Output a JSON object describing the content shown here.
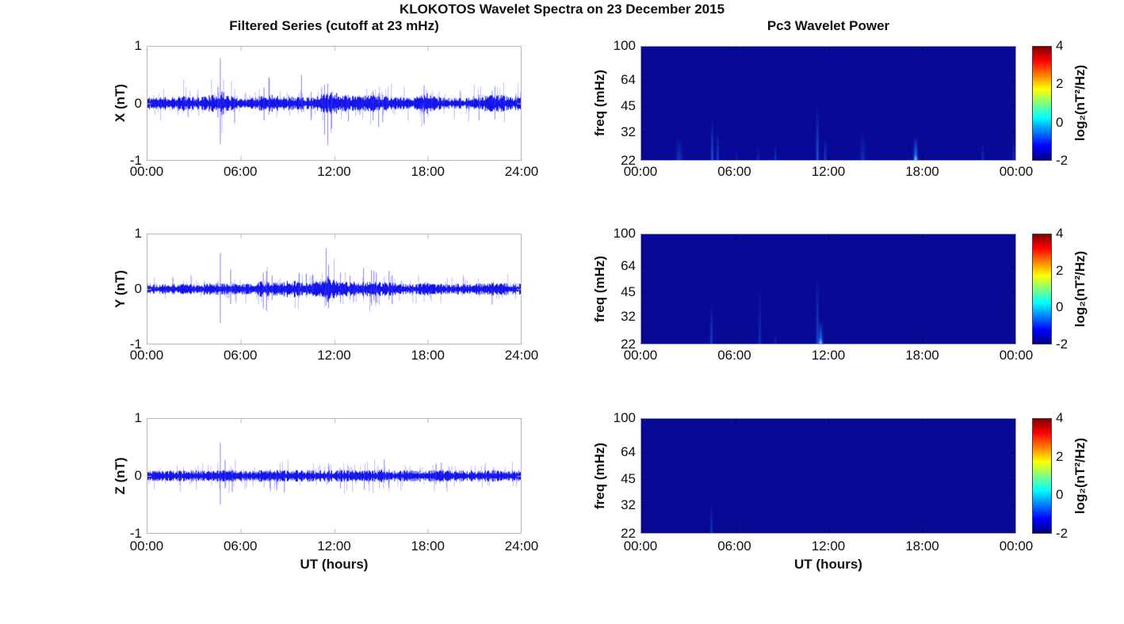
{
  "figure": {
    "title": "KLOKOTOS Wavelet Spectra on 23 December 2015",
    "left_column_title": "Filtered Series (cutoff at 23 mHz)",
    "right_column_title": "Pc3 Wavelet Power",
    "xlabel": "UT (hours)",
    "colorbar": {
      "label": "log₂(nT²/Hz)",
      "ticks": [
        "4",
        "2",
        "0",
        "-2"
      ],
      "range_log2": [
        -2,
        4
      ]
    },
    "colors": {
      "background": "#ffffff",
      "axis_box": "#b8b8b8",
      "series_line": "#0000ee",
      "heatmap_background": "#080a96",
      "text": "#111111"
    },
    "colormap": {
      "name": "jet",
      "stops": [
        "#000080",
        "#0000ff",
        "#00ffff",
        "#ffff00",
        "#ff0000",
        "#800000"
      ],
      "positions": [
        0,
        0.125,
        0.375,
        0.625,
        0.875,
        1
      ]
    }
  },
  "chart_data": [
    {
      "type": "line",
      "id": "filtered-series-x",
      "ylabel": "X (nT)",
      "x_ticks": [
        "00:00",
        "06:00",
        "12:00",
        "18:00",
        "24:00"
      ],
      "y_ticks": [
        1,
        0,
        -1
      ],
      "ylim": [
        -1,
        1
      ],
      "xlim_hours": [
        0,
        24
      ],
      "grid": false,
      "base_noise_nT": 0.065,
      "seed": 11,
      "envelope": [
        [
          0,
          1.1
        ],
        [
          1.5,
          1.2
        ],
        [
          2.5,
          1.4
        ],
        [
          3.2,
          1.1
        ],
        [
          4.3,
          1.6
        ],
        [
          4.8,
          2.1
        ],
        [
          5.3,
          1.4
        ],
        [
          6,
          1.0
        ],
        [
          7,
          1.2
        ],
        [
          7.8,
          1.7
        ],
        [
          8.6,
          1.5
        ],
        [
          9.3,
          1.2
        ],
        [
          10,
          1.1
        ],
        [
          11,
          1.3
        ],
        [
          11.5,
          2.3
        ],
        [
          12.1,
          1.9
        ],
        [
          12.6,
          1.5
        ],
        [
          13.2,
          1.3
        ],
        [
          14.2,
          1.4
        ],
        [
          14.9,
          1.6
        ],
        [
          15.4,
          1.3
        ],
        [
          16.2,
          1.0
        ],
        [
          17.2,
          1.1
        ],
        [
          17.9,
          1.9
        ],
        [
          18.4,
          1.3
        ],
        [
          19.2,
          1.0
        ],
        [
          20.5,
          1.0
        ],
        [
          21.3,
          1.1
        ],
        [
          22.1,
          1.5
        ],
        [
          22.6,
          1.6
        ],
        [
          23.2,
          1.2
        ],
        [
          24,
          1.3
        ]
      ],
      "spikes_t_hi_lo": [
        [
          4.65,
          0.8,
          -0.72
        ],
        [
          4.5,
          0.3,
          -0.25
        ],
        [
          5.6,
          0.12,
          -0.35
        ],
        [
          7.45,
          0.28,
          -0.3
        ],
        [
          7.8,
          0.46,
          -0.2
        ],
        [
          9.9,
          0.5,
          -0.15
        ],
        [
          10.5,
          0.2,
          -0.3
        ],
        [
          11.35,
          0.33,
          -0.55
        ],
        [
          11.55,
          0.35,
          -0.74
        ],
        [
          11.8,
          0.2,
          -0.45
        ],
        [
          12.9,
          0.15,
          -0.32
        ],
        [
          14.5,
          0.2,
          -0.3
        ],
        [
          14.85,
          0.18,
          -0.42
        ],
        [
          15.1,
          0.15,
          -0.33
        ],
        [
          17.75,
          0.32,
          -0.35
        ],
        [
          21.3,
          0.15,
          -0.3
        ],
        [
          22.3,
          0.3,
          -0.28
        ]
      ]
    },
    {
      "type": "heatmap",
      "id": "wavelet-power-x",
      "ylabel": "freq (mHz)",
      "x_ticks": [
        "00:00",
        "06:00",
        "12:00",
        "18:00",
        "00:00"
      ],
      "y_ticks": [
        100,
        64,
        45,
        32,
        22
      ],
      "y_scale": "log",
      "ylim": [
        22,
        100
      ],
      "xlim_hours": [
        0,
        24
      ],
      "clim_log2": [
        -2,
        4
      ],
      "background_value_log2": -2,
      "events_t_fmax_intensity_width": [
        [
          2.43,
          30,
          0.3,
          5
        ],
        [
          4.55,
          38,
          0.6,
          2
        ],
        [
          4.9,
          33,
          0.45,
          2
        ],
        [
          6.1,
          25,
          0.2,
          2
        ],
        [
          7.5,
          26,
          0.22,
          2
        ],
        [
          8.6,
          27,
          0.3,
          2
        ],
        [
          11.3,
          45,
          0.65,
          2
        ],
        [
          11.8,
          30,
          0.4,
          2
        ],
        [
          14.2,
          33,
          0.25,
          4
        ],
        [
          17.6,
          30,
          0.9,
          3
        ],
        [
          21.9,
          28,
          0.3,
          2
        ],
        [
          23.9,
          30,
          0.25,
          2
        ]
      ]
    },
    {
      "type": "line",
      "id": "filtered-series-y",
      "ylabel": "Y (nT)",
      "x_ticks": [
        "00:00",
        "06:00",
        "12:00",
        "18:00",
        "24:00"
      ],
      "y_ticks": [
        1,
        0,
        -1
      ],
      "ylim": [
        -1,
        1
      ],
      "xlim_hours": [
        0,
        24
      ],
      "grid": false,
      "base_noise_nT": 0.06,
      "seed": 22,
      "envelope": [
        [
          0,
          1.0
        ],
        [
          2,
          1.0
        ],
        [
          4.4,
          1.2
        ],
        [
          4.7,
          1.5
        ],
        [
          5,
          1.1
        ],
        [
          6,
          1.0
        ],
        [
          6.8,
          1.3
        ],
        [
          7.5,
          1.6
        ],
        [
          8,
          1.5
        ],
        [
          8.7,
          1.6
        ],
        [
          9.3,
          1.7
        ],
        [
          9.8,
          1.4
        ],
        [
          10.5,
          1.2
        ],
        [
          11.2,
          1.8
        ],
        [
          11.5,
          2.6
        ],
        [
          11.9,
          2.2
        ],
        [
          12.3,
          1.6
        ],
        [
          13,
          1.4
        ],
        [
          13.8,
          1.5
        ],
        [
          14.5,
          1.5
        ],
        [
          15.2,
          1.4
        ],
        [
          16,
          1.2
        ],
        [
          17,
          1.0
        ],
        [
          17.9,
          1.3
        ],
        [
          18.3,
          1.1
        ],
        [
          19.5,
          1.0
        ],
        [
          21,
          1.1
        ],
        [
          22,
          1.3
        ],
        [
          22.6,
          1.3
        ],
        [
          23.5,
          1.1
        ],
        [
          24,
          1.1
        ]
      ],
      "spikes_t_hi_lo": [
        [
          4.65,
          0.66,
          -0.62
        ],
        [
          5.3,
          0.36,
          -0.28
        ],
        [
          7.4,
          0.3,
          -0.35
        ],
        [
          7.6,
          0.33,
          -0.4
        ],
        [
          8.0,
          0.25,
          -0.2
        ],
        [
          9.7,
          0.29,
          -0.15
        ],
        [
          10.2,
          0.28,
          -0.15
        ],
        [
          10.6,
          0.27,
          -0.12
        ],
        [
          11.45,
          0.75,
          -0.3
        ],
        [
          11.6,
          0.45,
          -0.35
        ],
        [
          12.4,
          0.3,
          -0.25
        ],
        [
          13.0,
          0.25,
          -0.2
        ],
        [
          13.85,
          0.38,
          -0.15
        ],
        [
          14.4,
          0.35,
          -0.3
        ],
        [
          14.55,
          0.33,
          -0.2
        ],
        [
          14.7,
          0.3,
          -0.25
        ],
        [
          15.5,
          0.33,
          -0.2
        ],
        [
          15.7,
          0.25,
          -0.28
        ]
      ]
    },
    {
      "type": "heatmap",
      "id": "wavelet-power-y",
      "ylabel": "freq (mHz)",
      "x_ticks": [
        "00:00",
        "06:00",
        "12:00",
        "18:00",
        "00:00"
      ],
      "y_ticks": [
        100,
        64,
        45,
        32,
        22
      ],
      "y_scale": "log",
      "ylim": [
        22,
        100
      ],
      "xlim_hours": [
        0,
        24
      ],
      "clim_log2": [
        -2,
        4
      ],
      "background_value_log2": -2,
      "events_t_fmax_intensity_width": [
        [
          4.5,
          39,
          0.45,
          2
        ],
        [
          7.6,
          48,
          0.3,
          2
        ],
        [
          8.6,
          25,
          0.2,
          2
        ],
        [
          11.3,
          57,
          0.5,
          2
        ],
        [
          11.5,
          30,
          0.95,
          3
        ]
      ]
    },
    {
      "type": "line",
      "id": "filtered-series-z",
      "ylabel": "Z (nT)",
      "x_ticks": [
        "00:00",
        "06:00",
        "12:00",
        "18:00",
        "24:00"
      ],
      "y_ticks": [
        1,
        0,
        -1
      ],
      "ylim": [
        -1,
        1
      ],
      "xlim_hours": [
        0,
        24
      ],
      "grid": false,
      "base_noise_nT": 0.06,
      "seed": 33,
      "envelope": [
        [
          0,
          1.0
        ],
        [
          4.4,
          1.1
        ],
        [
          4.8,
          1.3
        ],
        [
          5.2,
          1.1
        ],
        [
          6,
          1.0
        ],
        [
          8,
          1.1
        ],
        [
          10,
          1.1
        ],
        [
          12,
          1.1
        ],
        [
          14,
          1.1
        ],
        [
          15.2,
          1.2
        ],
        [
          16,
          1.05
        ],
        [
          18.5,
          1.15
        ],
        [
          20,
          1.0
        ],
        [
          22,
          1.05
        ],
        [
          24,
          1.05
        ]
      ],
      "spikes_t_hi_lo": [
        [
          4.65,
          0.58,
          -0.5
        ],
        [
          4.95,
          0.28,
          -0.22
        ],
        [
          5.4,
          0.12,
          -0.28
        ],
        [
          7.9,
          0.12,
          -0.26
        ],
        [
          8.3,
          0.1,
          -0.25
        ],
        [
          11.6,
          0.22,
          -0.12
        ],
        [
          12.4,
          0.12,
          -0.22
        ],
        [
          13.9,
          0.1,
          -0.24
        ],
        [
          15.2,
          0.29,
          -0.12
        ],
        [
          15.5,
          0.12,
          -0.2
        ],
        [
          18.5,
          0.22,
          -0.15
        ]
      ]
    },
    {
      "type": "heatmap",
      "id": "wavelet-power-z",
      "ylabel": "freq (mHz)",
      "x_ticks": [
        "00:00",
        "06:00",
        "12:00",
        "18:00",
        "00:00"
      ],
      "y_ticks": [
        100,
        64,
        45,
        32,
        22
      ],
      "y_scale": "log",
      "ylim": [
        22,
        100
      ],
      "xlim_hours": [
        0,
        24
      ],
      "clim_log2": [
        -2,
        4
      ],
      "background_value_log2": -2,
      "events_t_fmax_intensity_width": [
        [
          4.5,
          33,
          0.35,
          2
        ]
      ]
    }
  ]
}
